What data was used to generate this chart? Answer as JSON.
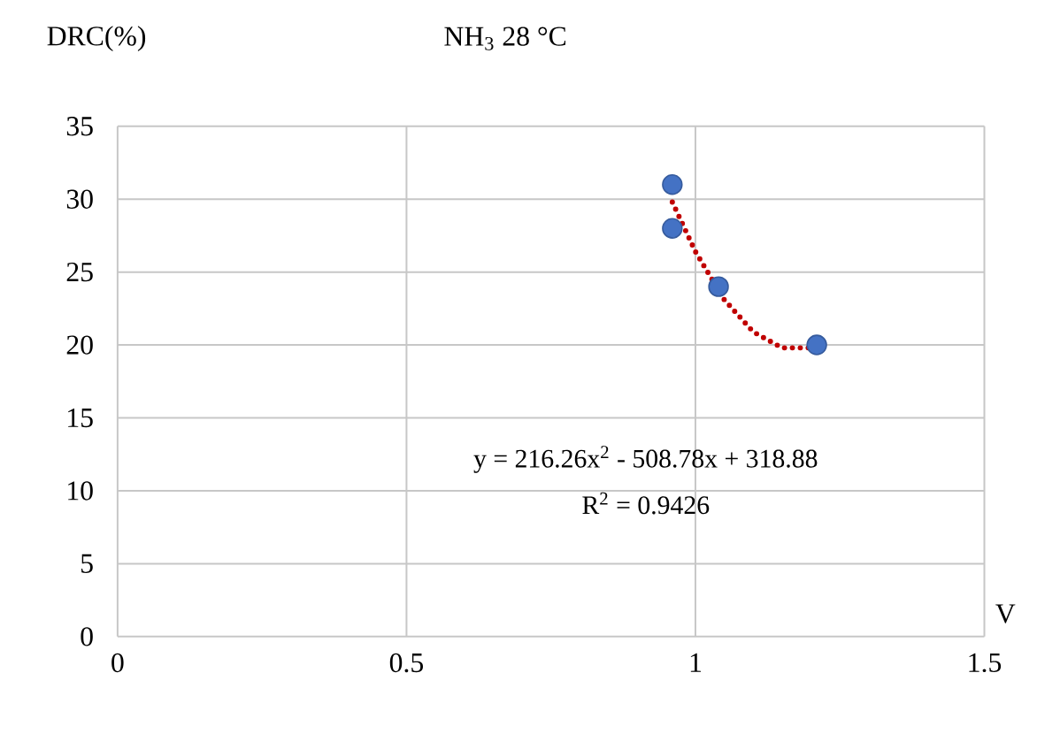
{
  "chart_data": {
    "type": "scatter",
    "title": "NH$_{3}$ 28 °C",
    "xlabel": "V",
    "ylabel": "DRC(%)",
    "annotations": [
      "y = 216.26x$^{2}$ - 508.78x + 318.88",
      "R$^{2}$ = 0.9426"
    ],
    "series": [
      {
        "color": "#4472c4",
        "marker": "circle",
        "x": [
          0.96,
          0.96,
          1.04,
          1.21
        ],
        "values": [
          31,
          28,
          24,
          20
        ]
      },
      {
        "type": "line",
        "color": "#c00000",
        "line_style": "dotted",
        "marker": "none",
        "x": [
          0.96,
          1.0,
          1.05,
          1.1,
          1.15,
          1.2
        ],
        "values": [
          29.8,
          26.4,
          23.1,
          20.9,
          19.8,
          19.8
        ]
      }
    ],
    "xlim": [
      0,
      1.5
    ],
    "xticks": [
      0,
      0.5,
      1,
      1.5
    ],
    "ylim": [
      0,
      35
    ],
    "yticks": [
      0,
      5,
      10,
      15,
      20,
      25,
      30,
      35
    ],
    "grid": true
  }
}
